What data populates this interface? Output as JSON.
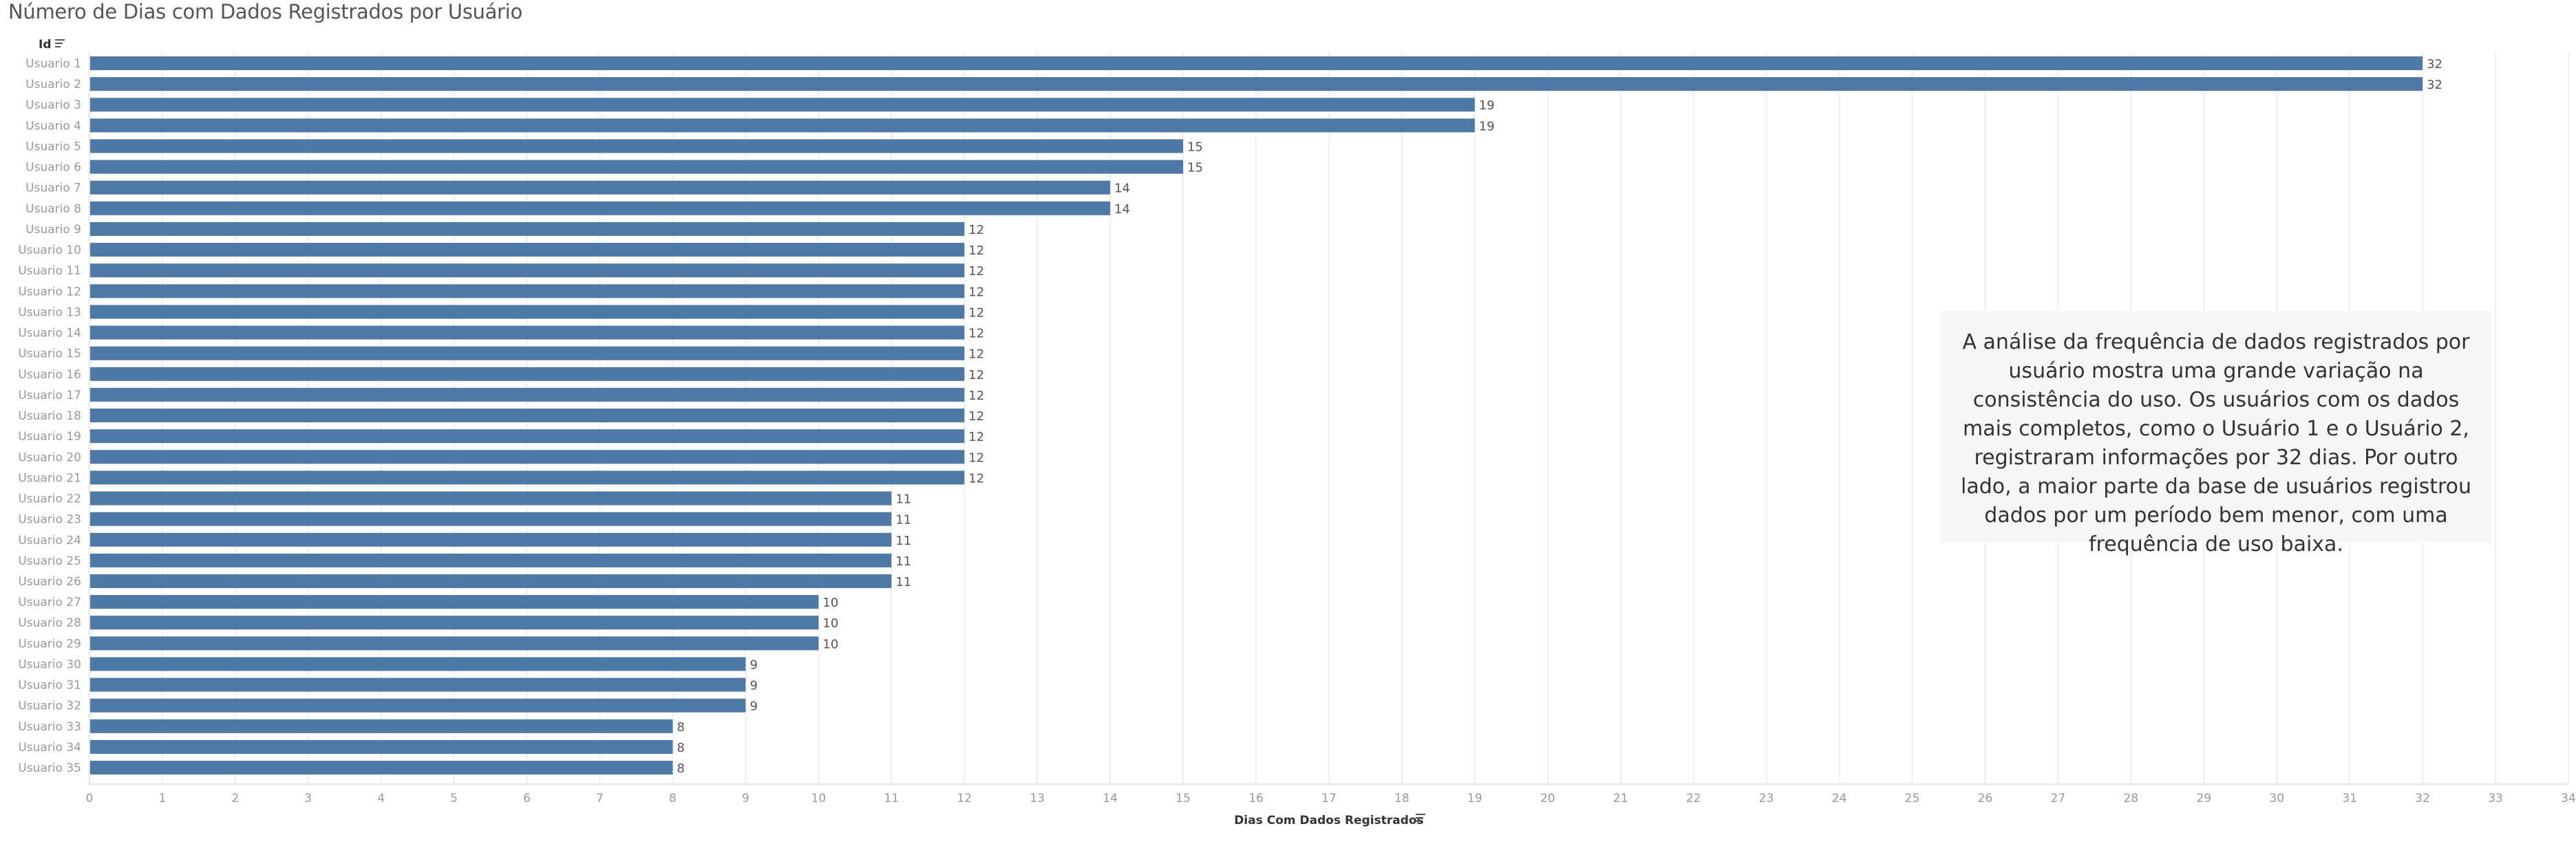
{
  "page": {
    "title": "Número de Dias com Dados Registrados por Usuário"
  },
  "annotation": {
    "text": "A análise da frequência de dados registrados por usuário mostra uma grande variação na consistência do uso. Os usuários com os dados mais completos, como o Usuário 1 e o Usuário 2, registraram informações por 32 dias. Por outro lado, a maior parte da base de usuários registrou dados por um período bem menor, com uma frequência de uso baixa."
  },
  "colors": {
    "bar": "#4e79a7",
    "grid": "#efefef",
    "axis_text": "#999999",
    "label_text": "#555555"
  },
  "chart_data": {
    "type": "bar",
    "orientation": "horizontal",
    "title": "Número de Dias com Dados Registrados por Usuário",
    "ylabel": "Id",
    "xlabel": "Dias Com Dados Registrados",
    "xlim": [
      0,
      34
    ],
    "x_ticks": [
      0,
      1,
      2,
      3,
      4,
      5,
      6,
      7,
      8,
      9,
      10,
      11,
      12,
      13,
      14,
      15,
      16,
      17,
      18,
      19,
      20,
      21,
      22,
      23,
      24,
      25,
      26,
      27,
      28,
      29,
      30,
      31,
      32,
      33,
      34
    ],
    "grid": true,
    "sorted": "descending",
    "categories": [
      "Usuario 1",
      "Usuario 2",
      "Usuario 3",
      "Usuario 4",
      "Usuario 5",
      "Usuario 6",
      "Usuario 7",
      "Usuario 8",
      "Usuario 9",
      "Usuario 10",
      "Usuario 11",
      "Usuario 12",
      "Usuario 13",
      "Usuario 14",
      "Usuario 15",
      "Usuario 16",
      "Usuario 17",
      "Usuario 18",
      "Usuario 19",
      "Usuario 20",
      "Usuario 21",
      "Usuario 22",
      "Usuario 23",
      "Usuario 24",
      "Usuario 25",
      "Usuario 26",
      "Usuario 27",
      "Usuario 28",
      "Usuario 29",
      "Usuario 30",
      "Usuario 31",
      "Usuario 32",
      "Usuario 33",
      "Usuario 34",
      "Usuario 35"
    ],
    "values": [
      32,
      32,
      19,
      19,
      15,
      15,
      14,
      14,
      12,
      12,
      12,
      12,
      12,
      12,
      12,
      12,
      12,
      12,
      12,
      12,
      12,
      11,
      11,
      11,
      11,
      11,
      10,
      10,
      10,
      9,
      9,
      9,
      8,
      8,
      8
    ]
  }
}
